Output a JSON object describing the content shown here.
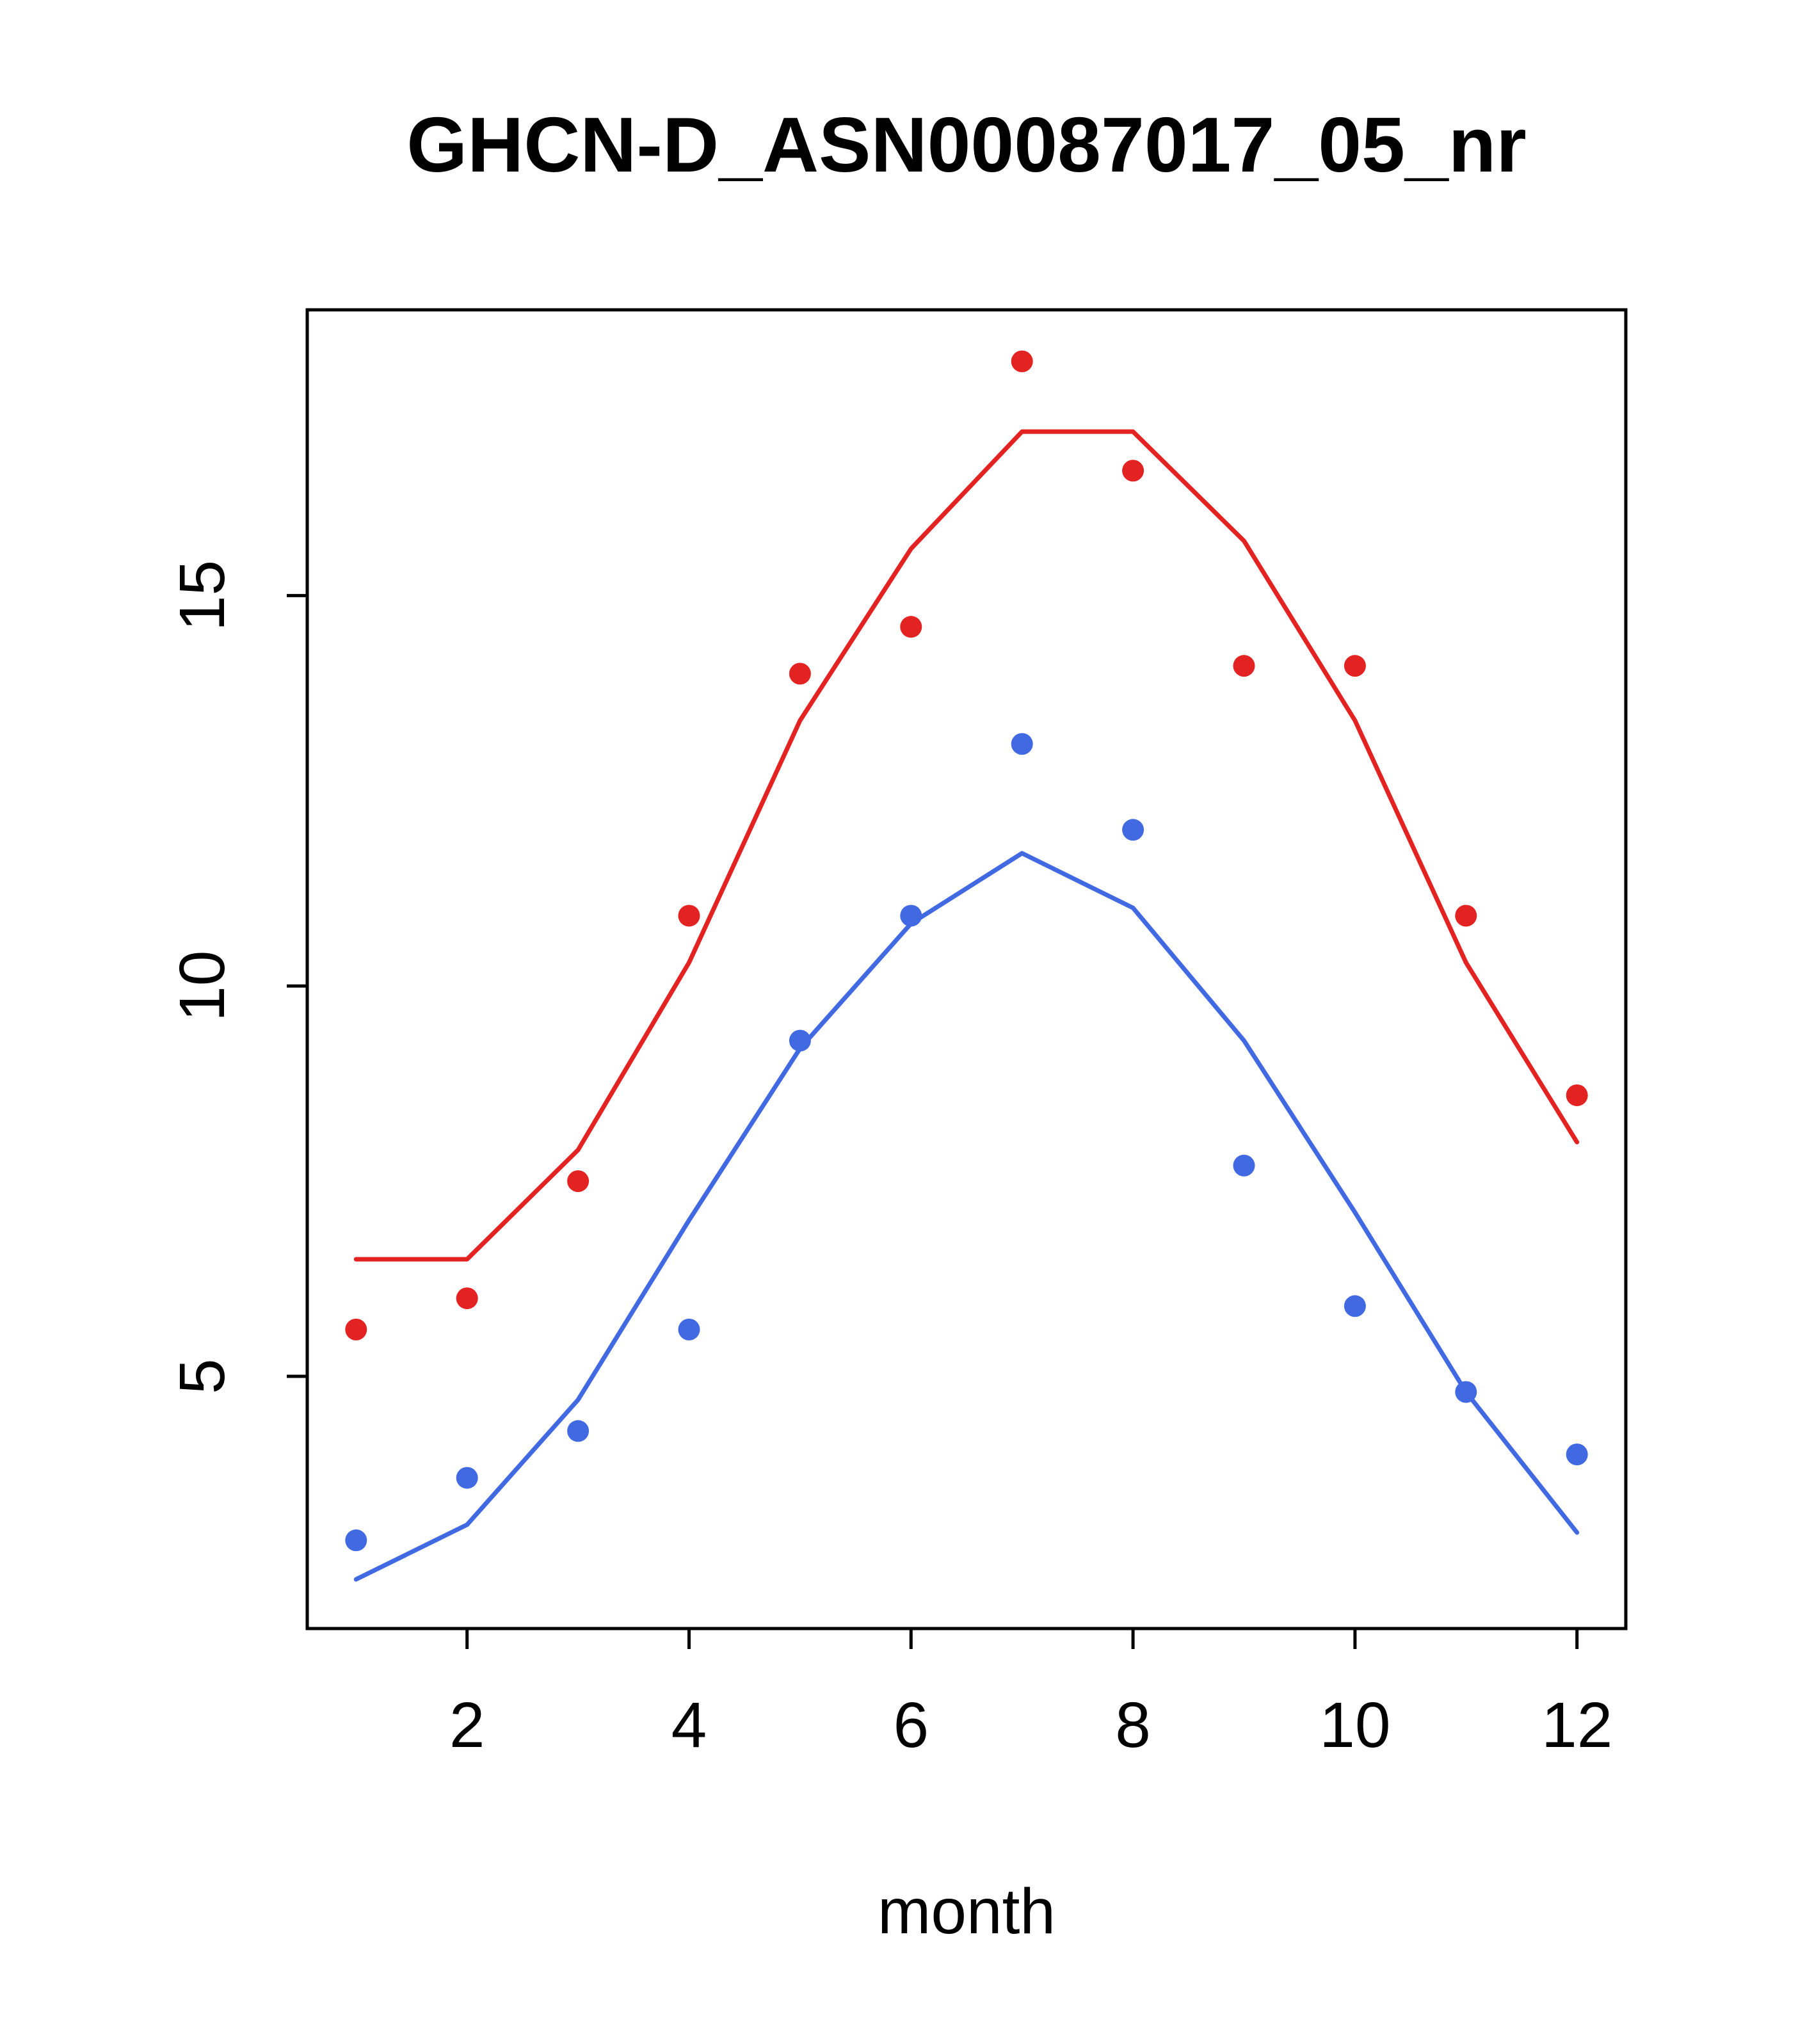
{
  "chart_data": {
    "type": "scatter",
    "title": "GHCN-D_ASN00087017_05_nr",
    "xlabel": "month",
    "ylabel": "",
    "x": [
      1,
      2,
      3,
      4,
      5,
      6,
      7,
      8,
      9,
      10,
      11,
      12
    ],
    "x_ticks": [
      2,
      4,
      6,
      8,
      10,
      12
    ],
    "y_ticks": [
      5,
      10,
      15
    ],
    "xlim": [
      0.56,
      12.44
    ],
    "ylim": [
      1.77,
      18.66
    ],
    "grid": false,
    "legend": "none",
    "colors": {
      "red": "#e32222",
      "blue": "#4169e1"
    },
    "series": [
      {
        "name": "red-observed",
        "type": "scatter",
        "color": "#e32222",
        "values": [
          5.6,
          6.0,
          7.5,
          10.9,
          14.0,
          14.6,
          18.0,
          16.6,
          14.1,
          14.1,
          10.9,
          8.6
        ]
      },
      {
        "name": "red-model",
        "type": "line",
        "color": "#e32222",
        "values": [
          6.5,
          6.5,
          7.9,
          10.3,
          13.4,
          15.6,
          17.1,
          17.1,
          15.7,
          13.4,
          10.3,
          8.0
        ]
      },
      {
        "name": "blue-observed",
        "type": "scatter",
        "color": "#4169e1",
        "values": [
          2.9,
          3.7,
          4.3,
          5.6,
          9.3,
          10.9,
          13.1,
          12.0,
          7.7,
          5.9,
          4.8,
          4.0
        ]
      },
      {
        "name": "blue-model",
        "type": "line",
        "color": "#4169e1",
        "values": [
          2.4,
          3.1,
          4.7,
          7.0,
          9.2,
          10.8,
          11.7,
          11.0,
          9.3,
          7.1,
          4.8,
          3.0
        ]
      }
    ]
  }
}
